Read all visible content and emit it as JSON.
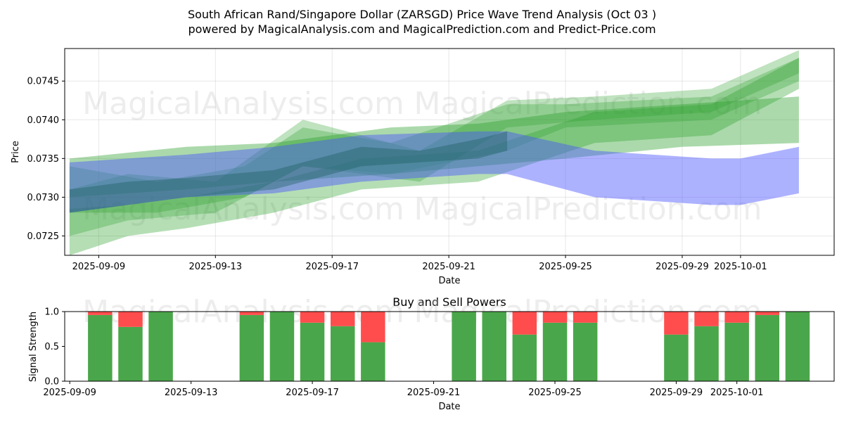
{
  "figure": {
    "title_line1": "South African Rand/Singapore Dollar (ZARSGD) Price Wave Trend Analysis (Oct 03 )",
    "title_line2": "powered by MagicalAnalysis.com and MagicalPrediction.com and Predict-Price.com",
    "watermarks": [
      "MagicalAnalysis.com",
      "MagicalPrediction.com"
    ]
  },
  "chart_data": [
    {
      "type": "area",
      "title": "",
      "xlabel": "Date",
      "ylabel": "Price",
      "grid": true,
      "x_range": [
        "2025-09-07T20:00",
        "2025-10-04T05:00"
      ],
      "ylim": [
        0.07225,
        0.07492
      ],
      "x_ticks": [
        "2025-09-09",
        "2025-09-13",
        "2025-09-17",
        "2025-09-21",
        "2025-09-25",
        "2025-09-29",
        "2025-10-01"
      ],
      "y_ticks": [
        0.0725,
        0.073,
        0.0735,
        0.074,
        0.0745
      ],
      "colors": {
        "green": "#2ca02c",
        "blue": "#0000ff",
        "green_band": "#5fb55f",
        "blue_band": "#4f6fbf"
      },
      "series": [
        {
          "name": "green-wave-band-1",
          "color": "green",
          "x": [
            "2025-09-08",
            "2025-09-10",
            "2025-09-12",
            "2025-09-15",
            "2025-09-18",
            "2025-09-22",
            "2025-09-26",
            "2025-09-30",
            "2025-10-03"
          ],
          "upper": [
            0.07285,
            0.0729,
            0.073,
            0.0732,
            0.0735,
            0.0736,
            0.0741,
            0.0742,
            0.0748
          ],
          "lower": [
            0.07225,
            0.0725,
            0.0726,
            0.0728,
            0.0731,
            0.0732,
            0.0737,
            0.0738,
            0.0744
          ]
        },
        {
          "name": "green-wave-band-2",
          "color": "green",
          "x": [
            "2025-09-08",
            "2025-09-11",
            "2025-09-14",
            "2025-09-16",
            "2025-09-19",
            "2025-09-23",
            "2025-09-25",
            "2025-09-30",
            "2025-10-03"
          ],
          "upper": [
            0.0734,
            0.0732,
            0.0734,
            0.0739,
            0.0737,
            0.0742,
            0.0742,
            0.0743,
            0.0748
          ],
          "lower": [
            0.0728,
            0.0728,
            0.073,
            0.0734,
            0.0733,
            0.0736,
            0.0739,
            0.074,
            0.0745
          ]
        },
        {
          "name": "green-wave-band-3",
          "color": "green",
          "x": [
            "2025-09-08",
            "2025-09-12",
            "2025-09-15",
            "2025-09-19",
            "2025-09-22",
            "2025-09-25",
            "2025-09-29",
            "2025-10-03"
          ],
          "upper": [
            0.0735,
            0.07365,
            0.0737,
            0.0739,
            0.07395,
            0.0741,
            0.0742,
            0.0743
          ],
          "lower": [
            0.073,
            0.0731,
            0.0732,
            0.0733,
            0.0734,
            0.0735,
            0.07365,
            0.0737
          ]
        },
        {
          "name": "green-wave-band-4",
          "color": "green",
          "x": [
            "2025-09-08",
            "2025-09-10",
            "2025-09-13",
            "2025-09-16",
            "2025-09-20",
            "2025-09-23",
            "2025-09-26",
            "2025-09-30",
            "2025-10-03"
          ],
          "upper": [
            0.0731,
            0.0733,
            0.0732,
            0.074,
            0.0736,
            0.07425,
            0.0743,
            0.0744,
            0.0749
          ],
          "lower": [
            0.0725,
            0.0727,
            0.0728,
            0.0734,
            0.0732,
            0.0739,
            0.074,
            0.0741,
            0.0746
          ]
        },
        {
          "name": "blue-wave-band",
          "color": "blue",
          "x": [
            "2025-09-08",
            "2025-09-12",
            "2025-09-15",
            "2025-09-18",
            "2025-09-22",
            "2025-09-23",
            "2025-09-26",
            "2025-09-30",
            "2025-10-01",
            "2025-10-03"
          ],
          "upper": [
            0.07345,
            0.07355,
            0.07365,
            0.0738,
            0.07385,
            0.07385,
            0.0736,
            0.0735,
            0.0735,
            0.07365
          ],
          "lower": [
            0.0728,
            0.073,
            0.07305,
            0.0732,
            0.0733,
            0.0733,
            0.073,
            0.0729,
            0.0729,
            0.07305
          ]
        },
        {
          "name": "dark-overlap-band",
          "color": "blue",
          "x": [
            "2025-09-08",
            "2025-09-10",
            "2025-09-12",
            "2025-09-15",
            "2025-09-18",
            "2025-09-20",
            "2025-09-22",
            "2025-09-23"
          ],
          "upper": [
            0.0731,
            0.0732,
            0.07325,
            0.07335,
            0.07365,
            0.0736,
            0.07375,
            0.07385
          ],
          "lower": [
            0.0728,
            0.0729,
            0.073,
            0.0731,
            0.0734,
            0.07345,
            0.0735,
            0.0736
          ]
        }
      ]
    },
    {
      "type": "bar",
      "title": "Buy and Sell Powers",
      "xlabel": "Date",
      "ylabel": "Signal Strength",
      "grid": false,
      "ylim": [
        0,
        1.0
      ],
      "x_range": [
        "2025-09-08T20:00",
        "2025-10-04T05:00"
      ],
      "x_ticks": [
        "2025-09-09",
        "2025-09-13",
        "2025-09-17",
        "2025-09-21",
        "2025-09-25",
        "2025-09-29",
        "2025-10-01"
      ],
      "y_ticks": [
        0.0,
        0.5,
        1.0
      ],
      "colors": {
        "buy": "#4aa64a",
        "sell": "#ff4d4d"
      },
      "categories": [
        "2025-09-10",
        "2025-09-11",
        "2025-09-12",
        "2025-09-15",
        "2025-09-16",
        "2025-09-17",
        "2025-09-18",
        "2025-09-19",
        "2025-09-22",
        "2025-09-23",
        "2025-09-24",
        "2025-09-25",
        "2025-09-26",
        "2025-09-29",
        "2025-09-30",
        "2025-10-01",
        "2025-10-02",
        "2025-10-03"
      ],
      "series": [
        {
          "name": "Buy",
          "values": [
            0.95,
            0.78,
            1.0,
            0.95,
            1.0,
            0.84,
            0.79,
            0.56,
            1.0,
            1.0,
            0.67,
            0.84,
            0.84,
            0.67,
            0.79,
            0.84,
            0.95,
            1.0
          ]
        },
        {
          "name": "Sell",
          "values": [
            0.05,
            0.22,
            0.0,
            0.05,
            0.0,
            0.16,
            0.21,
            0.44,
            0.0,
            0.0,
            0.33,
            0.16,
            0.16,
            0.33,
            0.21,
            0.16,
            0.05,
            0.0
          ]
        }
      ]
    }
  ]
}
